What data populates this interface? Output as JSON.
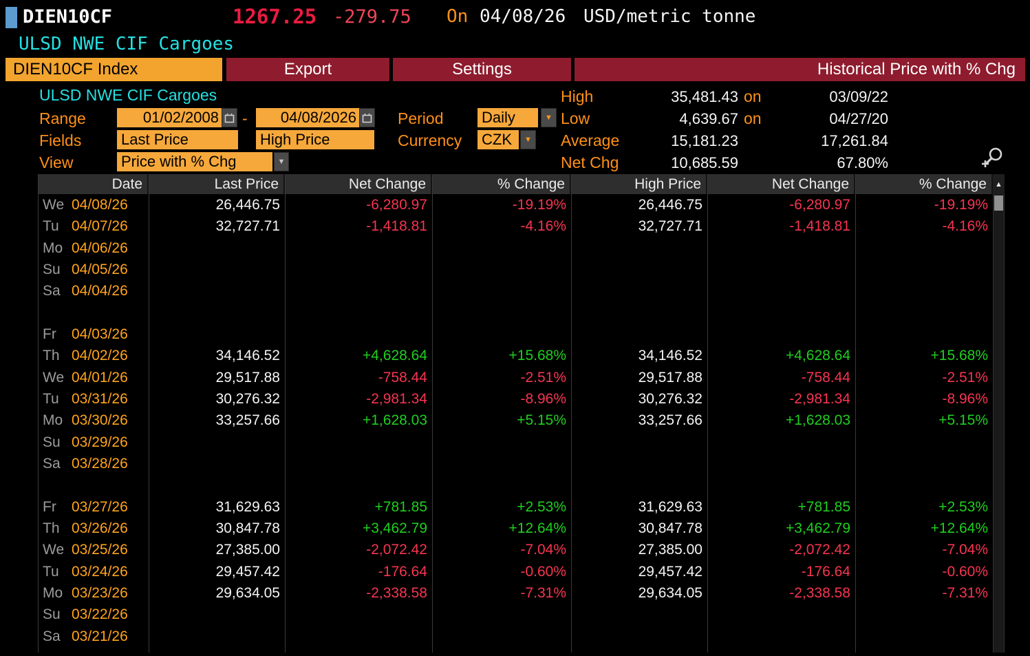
{
  "titlebar": {
    "ticker": "DIEN10CF",
    "price": "1267.25",
    "change": "-279.75",
    "on_label": "On",
    "date": "04/08/26",
    "unit": "USD/metric tonne",
    "echo": "ULSD NWE CIF Cargoes"
  },
  "tabs": {
    "index_tab": "DIEN10CF Index",
    "export": "Export",
    "settings": "Settings",
    "title": "Historical Price with % Chg"
  },
  "controls": {
    "security_name": "ULSD NWE CIF Cargoes",
    "range_label": "Range",
    "range_start": "01/02/2008",
    "range_separator": "-",
    "range_end": "04/08/2026",
    "period_label": "Period",
    "period_value": "Daily",
    "fields_label": "Fields",
    "field1": "Last Price",
    "field2": "High Price",
    "currency_label": "Currency",
    "currency_value": "CZK",
    "view_label": "View",
    "view_value": "Price with % Chg"
  },
  "stats": {
    "high_label": "High",
    "high_value": "35,481.43",
    "high_on": "on",
    "high_date": "03/09/22",
    "low_label": "Low",
    "low_value": "4,639.67",
    "low_on": "on",
    "low_date": "04/27/20",
    "avg_label": "Average",
    "avg_value": "15,181.23",
    "avg_value2": "17,261.84",
    "netchg_label": "Net Chg",
    "netchg_value": "10,685.59",
    "netchg_pct": "67.80%"
  },
  "icons": {
    "dropdown_arrow": "▼",
    "sort_up": "▲"
  },
  "colors": {
    "amber_label": "#ff9018",
    "amber_date": "#ffa41c",
    "input_orange": "#f6a83b",
    "tab_orange": "#f2a42e",
    "tab_red": "#8e1c2e",
    "cyan": "#25e0e2",
    "positive_green": "#1fcf1f",
    "negative_red": "#f63550",
    "price_red": "#e91c40"
  },
  "table": {
    "columns": [
      "Date",
      "Last Price",
      "Net Change",
      "% Change",
      "High Price",
      "Net Change",
      "% Change"
    ],
    "rows": [
      {
        "day": "We",
        "date": "04/08/26",
        "last": "26,446.75",
        "net": "-6,280.97",
        "pct": "-19.19%",
        "high": "26,446.75",
        "net2": "-6,280.97",
        "pct2": "-19.19%"
      },
      {
        "day": "Tu",
        "date": "04/07/26",
        "last": "32,727.71",
        "net": "-1,418.81",
        "pct": "-4.16%",
        "high": "32,727.71",
        "net2": "-1,418.81",
        "pct2": "-4.16%"
      },
      {
        "day": "Mo",
        "date": "04/06/26",
        "last": "",
        "net": "",
        "pct": "",
        "high": "",
        "net2": "",
        "pct2": ""
      },
      {
        "day": "Su",
        "date": "04/05/26",
        "last": "",
        "net": "",
        "pct": "",
        "high": "",
        "net2": "",
        "pct2": ""
      },
      {
        "day": "Sa",
        "date": "04/04/26",
        "last": "",
        "net": "",
        "pct": "",
        "high": "",
        "net2": "",
        "pct2": ""
      },
      {
        "day": "",
        "date": "",
        "last": "",
        "net": "",
        "pct": "",
        "high": "",
        "net2": "",
        "pct2": ""
      },
      {
        "day": "Fr",
        "date": "04/03/26",
        "last": "",
        "net": "",
        "pct": "",
        "high": "",
        "net2": "",
        "pct2": ""
      },
      {
        "day": "Th",
        "date": "04/02/26",
        "last": "34,146.52",
        "net": "+4,628.64",
        "pct": "+15.68%",
        "high": "34,146.52",
        "net2": "+4,628.64",
        "pct2": "+15.68%"
      },
      {
        "day": "We",
        "date": "04/01/26",
        "last": "29,517.88",
        "net": "-758.44",
        "pct": "-2.51%",
        "high": "29,517.88",
        "net2": "-758.44",
        "pct2": "-2.51%"
      },
      {
        "day": "Tu",
        "date": "03/31/26",
        "last": "30,276.32",
        "net": "-2,981.34",
        "pct": "-8.96%",
        "high": "30,276.32",
        "net2": "-2,981.34",
        "pct2": "-8.96%"
      },
      {
        "day": "Mo",
        "date": "03/30/26",
        "last": "33,257.66",
        "net": "+1,628.03",
        "pct": "+5.15%",
        "high": "33,257.66",
        "net2": "+1,628.03",
        "pct2": "+5.15%"
      },
      {
        "day": "Su",
        "date": "03/29/26",
        "last": "",
        "net": "",
        "pct": "",
        "high": "",
        "net2": "",
        "pct2": ""
      },
      {
        "day": "Sa",
        "date": "03/28/26",
        "last": "",
        "net": "",
        "pct": "",
        "high": "",
        "net2": "",
        "pct2": ""
      },
      {
        "day": "",
        "date": "",
        "last": "",
        "net": "",
        "pct": "",
        "high": "",
        "net2": "",
        "pct2": ""
      },
      {
        "day": "Fr",
        "date": "03/27/26",
        "last": "31,629.63",
        "net": "+781.85",
        "pct": "+2.53%",
        "high": "31,629.63",
        "net2": "+781.85",
        "pct2": "+2.53%"
      },
      {
        "day": "Th",
        "date": "03/26/26",
        "last": "30,847.78",
        "net": "+3,462.79",
        "pct": "+12.64%",
        "high": "30,847.78",
        "net2": "+3,462.79",
        "pct2": "+12.64%"
      },
      {
        "day": "We",
        "date": "03/25/26",
        "last": "27,385.00",
        "net": "-2,072.42",
        "pct": "-7.04%",
        "high": "27,385.00",
        "net2": "-2,072.42",
        "pct2": "-7.04%"
      },
      {
        "day": "Tu",
        "date": "03/24/26",
        "last": "29,457.42",
        "net": "-176.64",
        "pct": "-0.60%",
        "high": "29,457.42",
        "net2": "-176.64",
        "pct2": "-0.60%"
      },
      {
        "day": "Mo",
        "date": "03/23/26",
        "last": "29,634.05",
        "net": "-2,338.58",
        "pct": "-7.31%",
        "high": "29,634.05",
        "net2": "-2,338.58",
        "pct2": "-7.31%"
      },
      {
        "day": "Su",
        "date": "03/22/26",
        "last": "",
        "net": "",
        "pct": "",
        "high": "",
        "net2": "",
        "pct2": ""
      },
      {
        "day": "Sa",
        "date": "03/21/26",
        "last": "",
        "net": "",
        "pct": "",
        "high": "",
        "net2": "",
        "pct2": ""
      }
    ]
  }
}
